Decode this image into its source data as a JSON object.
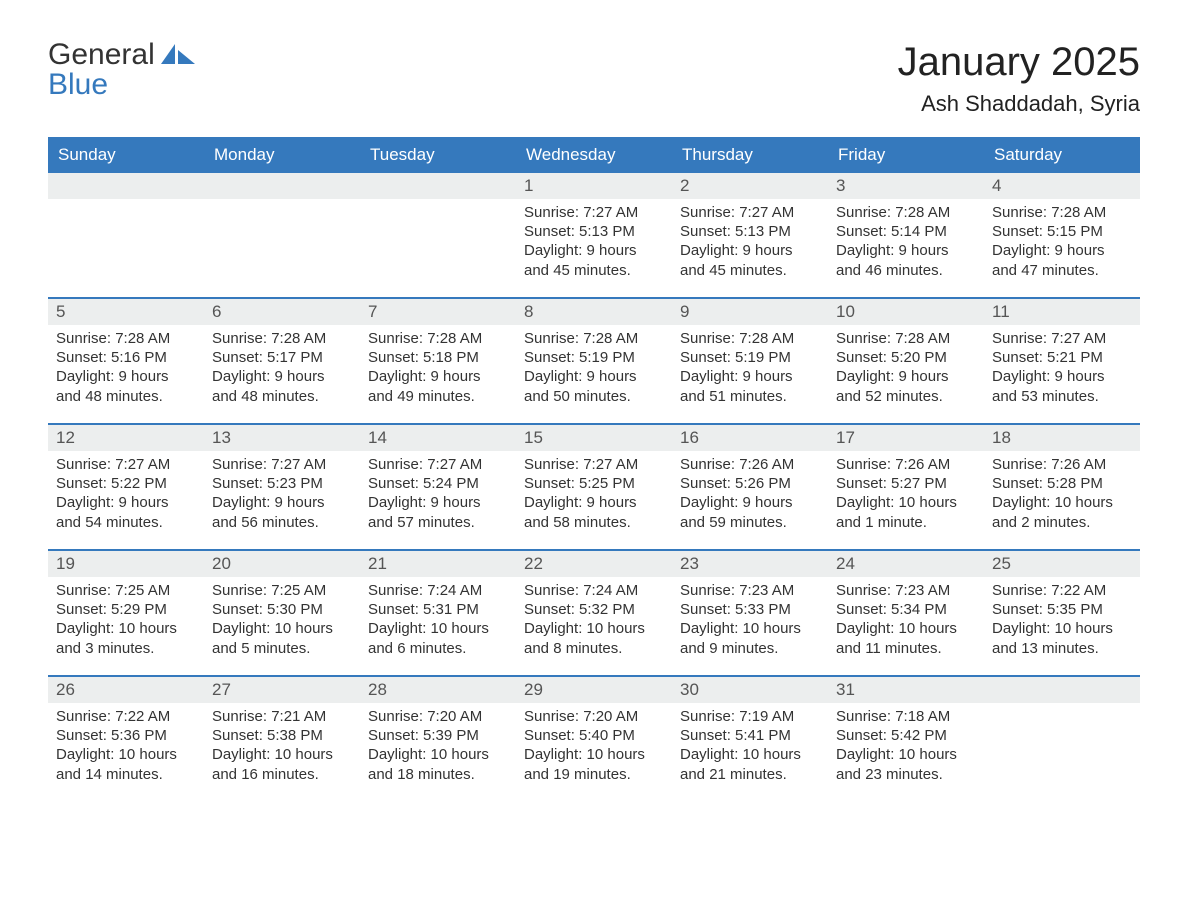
{
  "colors": {
    "brand_blue": "#3579bd",
    "text_dark": "#333333",
    "header_bg": "#3579bd",
    "header_text": "#ffffff",
    "day_number_bg": "#eceeee",
    "row_divider": "#3579bd",
    "background": "#ffffff"
  },
  "typography": {
    "family": "Arial",
    "title_fontsize_pt": 30,
    "location_fontsize_pt": 16,
    "weekday_fontsize_pt": 13,
    "day_number_fontsize_pt": 13,
    "body_fontsize_pt": 11
  },
  "logo": {
    "line1": "General",
    "line2": "Blue",
    "sail_color": "#3579bd"
  },
  "header": {
    "title": "January 2025",
    "location": "Ash Shaddadah, Syria"
  },
  "weekdays": [
    "Sunday",
    "Monday",
    "Tuesday",
    "Wednesday",
    "Thursday",
    "Friday",
    "Saturday"
  ],
  "weeks": [
    [
      null,
      null,
      null,
      {
        "n": "1",
        "sunrise": "Sunrise: 7:27 AM",
        "sunset": "Sunset: 5:13 PM",
        "daylight": "Daylight: 9 hours and 45 minutes."
      },
      {
        "n": "2",
        "sunrise": "Sunrise: 7:27 AM",
        "sunset": "Sunset: 5:13 PM",
        "daylight": "Daylight: 9 hours and 45 minutes."
      },
      {
        "n": "3",
        "sunrise": "Sunrise: 7:28 AM",
        "sunset": "Sunset: 5:14 PM",
        "daylight": "Daylight: 9 hours and 46 minutes."
      },
      {
        "n": "4",
        "sunrise": "Sunrise: 7:28 AM",
        "sunset": "Sunset: 5:15 PM",
        "daylight": "Daylight: 9 hours and 47 minutes."
      }
    ],
    [
      {
        "n": "5",
        "sunrise": "Sunrise: 7:28 AM",
        "sunset": "Sunset: 5:16 PM",
        "daylight": "Daylight: 9 hours and 48 minutes."
      },
      {
        "n": "6",
        "sunrise": "Sunrise: 7:28 AM",
        "sunset": "Sunset: 5:17 PM",
        "daylight": "Daylight: 9 hours and 48 minutes."
      },
      {
        "n": "7",
        "sunrise": "Sunrise: 7:28 AM",
        "sunset": "Sunset: 5:18 PM",
        "daylight": "Daylight: 9 hours and 49 minutes."
      },
      {
        "n": "8",
        "sunrise": "Sunrise: 7:28 AM",
        "sunset": "Sunset: 5:19 PM",
        "daylight": "Daylight: 9 hours and 50 minutes."
      },
      {
        "n": "9",
        "sunrise": "Sunrise: 7:28 AM",
        "sunset": "Sunset: 5:19 PM",
        "daylight": "Daylight: 9 hours and 51 minutes."
      },
      {
        "n": "10",
        "sunrise": "Sunrise: 7:28 AM",
        "sunset": "Sunset: 5:20 PM",
        "daylight": "Daylight: 9 hours and 52 minutes."
      },
      {
        "n": "11",
        "sunrise": "Sunrise: 7:27 AM",
        "sunset": "Sunset: 5:21 PM",
        "daylight": "Daylight: 9 hours and 53 minutes."
      }
    ],
    [
      {
        "n": "12",
        "sunrise": "Sunrise: 7:27 AM",
        "sunset": "Sunset: 5:22 PM",
        "daylight": "Daylight: 9 hours and 54 minutes."
      },
      {
        "n": "13",
        "sunrise": "Sunrise: 7:27 AM",
        "sunset": "Sunset: 5:23 PM",
        "daylight": "Daylight: 9 hours and 56 minutes."
      },
      {
        "n": "14",
        "sunrise": "Sunrise: 7:27 AM",
        "sunset": "Sunset: 5:24 PM",
        "daylight": "Daylight: 9 hours and 57 minutes."
      },
      {
        "n": "15",
        "sunrise": "Sunrise: 7:27 AM",
        "sunset": "Sunset: 5:25 PM",
        "daylight": "Daylight: 9 hours and 58 minutes."
      },
      {
        "n": "16",
        "sunrise": "Sunrise: 7:26 AM",
        "sunset": "Sunset: 5:26 PM",
        "daylight": "Daylight: 9 hours and 59 minutes."
      },
      {
        "n": "17",
        "sunrise": "Sunrise: 7:26 AM",
        "sunset": "Sunset: 5:27 PM",
        "daylight": "Daylight: 10 hours and 1 minute."
      },
      {
        "n": "18",
        "sunrise": "Sunrise: 7:26 AM",
        "sunset": "Sunset: 5:28 PM",
        "daylight": "Daylight: 10 hours and 2 minutes."
      }
    ],
    [
      {
        "n": "19",
        "sunrise": "Sunrise: 7:25 AM",
        "sunset": "Sunset: 5:29 PM",
        "daylight": "Daylight: 10 hours and 3 minutes."
      },
      {
        "n": "20",
        "sunrise": "Sunrise: 7:25 AM",
        "sunset": "Sunset: 5:30 PM",
        "daylight": "Daylight: 10 hours and 5 minutes."
      },
      {
        "n": "21",
        "sunrise": "Sunrise: 7:24 AM",
        "sunset": "Sunset: 5:31 PM",
        "daylight": "Daylight: 10 hours and 6 minutes."
      },
      {
        "n": "22",
        "sunrise": "Sunrise: 7:24 AM",
        "sunset": "Sunset: 5:32 PM",
        "daylight": "Daylight: 10 hours and 8 minutes."
      },
      {
        "n": "23",
        "sunrise": "Sunrise: 7:23 AM",
        "sunset": "Sunset: 5:33 PM",
        "daylight": "Daylight: 10 hours and 9 minutes."
      },
      {
        "n": "24",
        "sunrise": "Sunrise: 7:23 AM",
        "sunset": "Sunset: 5:34 PM",
        "daylight": "Daylight: 10 hours and 11 minutes."
      },
      {
        "n": "25",
        "sunrise": "Sunrise: 7:22 AM",
        "sunset": "Sunset: 5:35 PM",
        "daylight": "Daylight: 10 hours and 13 minutes."
      }
    ],
    [
      {
        "n": "26",
        "sunrise": "Sunrise: 7:22 AM",
        "sunset": "Sunset: 5:36 PM",
        "daylight": "Daylight: 10 hours and 14 minutes."
      },
      {
        "n": "27",
        "sunrise": "Sunrise: 7:21 AM",
        "sunset": "Sunset: 5:38 PM",
        "daylight": "Daylight: 10 hours and 16 minutes."
      },
      {
        "n": "28",
        "sunrise": "Sunrise: 7:20 AM",
        "sunset": "Sunset: 5:39 PM",
        "daylight": "Daylight: 10 hours and 18 minutes."
      },
      {
        "n": "29",
        "sunrise": "Sunrise: 7:20 AM",
        "sunset": "Sunset: 5:40 PM",
        "daylight": "Daylight: 10 hours and 19 minutes."
      },
      {
        "n": "30",
        "sunrise": "Sunrise: 7:19 AM",
        "sunset": "Sunset: 5:41 PM",
        "daylight": "Daylight: 10 hours and 21 minutes."
      },
      {
        "n": "31",
        "sunrise": "Sunrise: 7:18 AM",
        "sunset": "Sunset: 5:42 PM",
        "daylight": "Daylight: 10 hours and 23 minutes."
      },
      null
    ]
  ]
}
